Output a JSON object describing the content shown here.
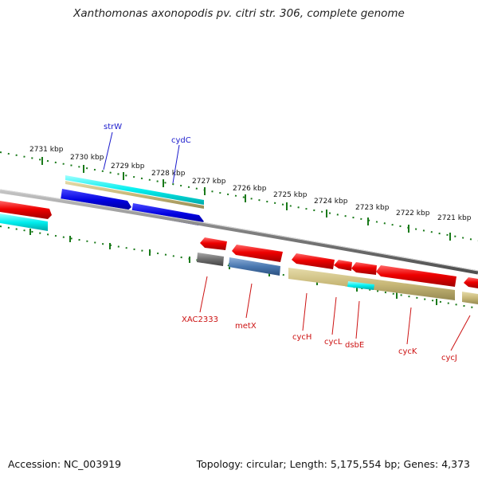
{
  "title": "Xanthomonas axonopodis pv. citri str. 306, complete genome",
  "footer": {
    "accession": "Accession: NC_003919",
    "summary": "Topology: circular; Length: 5,175,554 bp; Genes: 4,373"
  },
  "ruler_labels": [
    "2731 kbp",
    "2730 kbp",
    "2729 kbp",
    "2728 kbp",
    "2727 kbp",
    "2726 kbp",
    "2725 kbp",
    "2724 kbp",
    "2723 kbp",
    "2722 kbp",
    "2721 kbp"
  ],
  "gene_labels_top": [
    "strW",
    "cydC"
  ],
  "gene_labels_bottom": [
    "XAC2333",
    "metX",
    "cycH",
    "cycL",
    "dsbE",
    "cycK",
    "cycJ"
  ],
  "colors": {
    "forward_label": "#1a1acc",
    "reverse_label": "#cc1111",
    "tick": "#1a7a1a",
    "backbone": "#888888"
  }
}
